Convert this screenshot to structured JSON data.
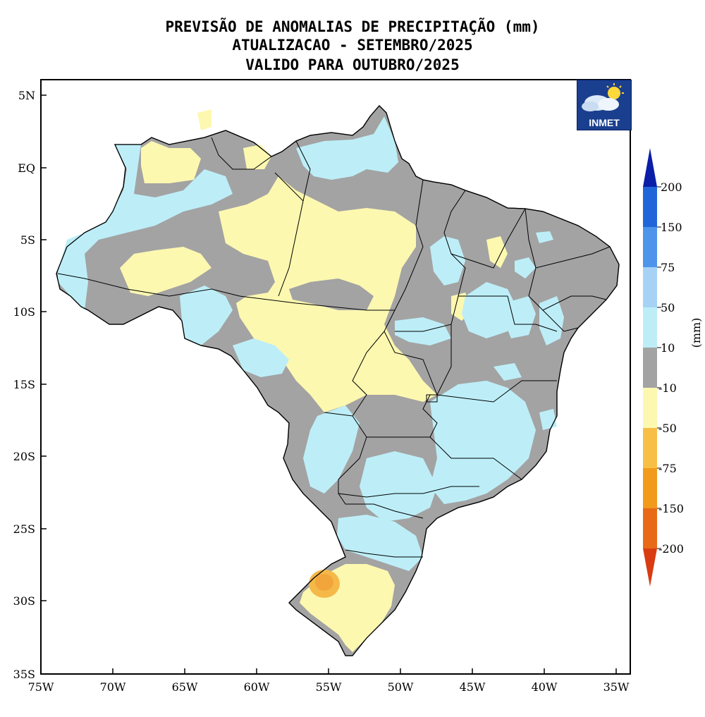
{
  "title": {
    "line1": "PREVISÃO DE ANOMALIAS DE PRECIPITAÇÃO (mm)",
    "line2": "ATUALIZACAO - SETEMBRO/2025",
    "line3": "VALIDO PARA OUTUBRO/2025"
  },
  "map": {
    "region": "Brazil",
    "lat_ticks": [
      "5N",
      "EQ",
      "5S",
      "10S",
      "15S",
      "20S",
      "25S",
      "30S",
      "35S"
    ],
    "lon_ticks": [
      "75W",
      "70W",
      "65W",
      "60W",
      "55W",
      "50W",
      "45W",
      "40W",
      "35W"
    ],
    "lon_range": [
      -75,
      -34
    ],
    "lat_range": [
      -35,
      5.5
    ]
  },
  "logo": {
    "text": "INMET",
    "icon": "cloud-sun-icon"
  },
  "colorbar": {
    "unit_label": "(mm)",
    "levels": [
      "200",
      "150",
      "75",
      "50",
      "10",
      "-10",
      "-50",
      "-75",
      "-150",
      "-200"
    ],
    "colors": [
      "#0b1ea8",
      "#2166d9",
      "#4d94ea",
      "#a6d3f5",
      "#bdeef8",
      "#a3a3a3",
      "#fdf8b0",
      "#f7bf46",
      "#f19a1c",
      "#e86a17",
      "#d93b12"
    ]
  },
  "colors": {
    "gray_near_normal": "#a3a3a3",
    "light_blue_above": "#bdeef8",
    "light_yellow_below": "#fdf8b0",
    "orange_below": "#f2a53a"
  }
}
